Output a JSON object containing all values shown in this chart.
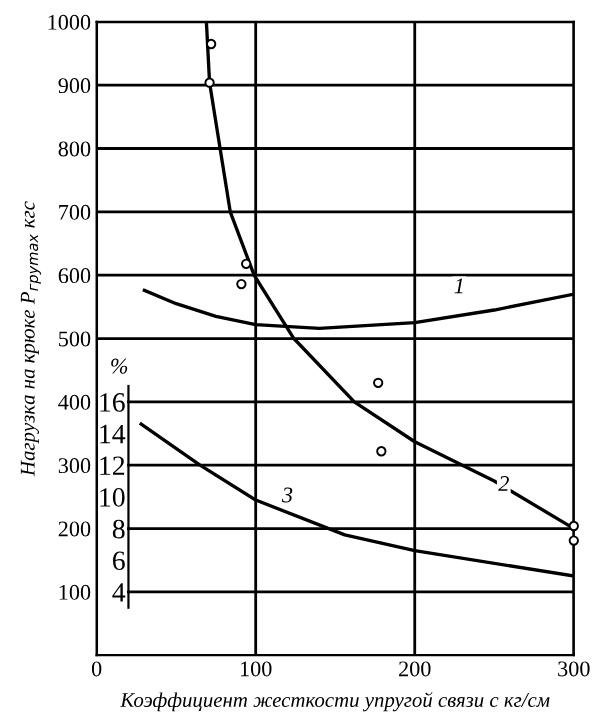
{
  "chart_data": {
    "type": "line",
    "xlabel": "Коэффициент жесткости упругой связи с кг/см",
    "ylabel": "Нагрузка на крюке P$_{груmax}$ кгс",
    "y2label": "%",
    "xlim": [
      0,
      300
    ],
    "xticks": [
      0,
      100,
      200,
      300
    ],
    "ylim": [
      0,
      1000
    ],
    "yticks": [
      100,
      200,
      300,
      400,
      500,
      600,
      700,
      800,
      900,
      1000
    ],
    "y2lim": [
      0,
      40
    ],
    "y2ticks": [
      4,
      6,
      8,
      10,
      12,
      14,
      16
    ],
    "grid": true,
    "legend": false,
    "series": [
      {
        "color": "#000000",
        "x": [
          30,
          50,
          75,
          100,
          140,
          200,
          250,
          300
        ],
        "values": [
          576,
          555,
          535,
          522,
          516,
          525,
          545,
          570
        ]
      },
      {
        "color": "#000000",
        "x": [
          69,
          71,
          84,
          99,
          124,
          162,
          200,
          250,
          300
        ],
        "values": [
          1000,
          904,
          700,
          600,
          500,
          400,
          337,
          275,
          200
        ]
      },
      {
        "axis": "y2",
        "color": "#000000",
        "x": [
          28,
          65,
          100,
          156,
          200,
          300
        ],
        "values": [
          14.6,
          12,
          9.8,
          7.6,
          6.6,
          5.0
        ]
      },
      {
        "type": "scatter",
        "marker": "circle",
        "color": "#000000",
        "x": [
          72,
          71,
          94,
          91,
          177,
          179,
          300,
          300
        ],
        "values": [
          965,
          904,
          618,
          586,
          430,
          322,
          204,
          181
        ]
      }
    ],
    "annotations": [
      {
        "text": "1",
        "x": 228,
        "y": 580
      },
      {
        "text": "2",
        "x": 256,
        "y": 268
      },
      {
        "text": "3",
        "x": 120,
        "y": 250
      }
    ]
  }
}
